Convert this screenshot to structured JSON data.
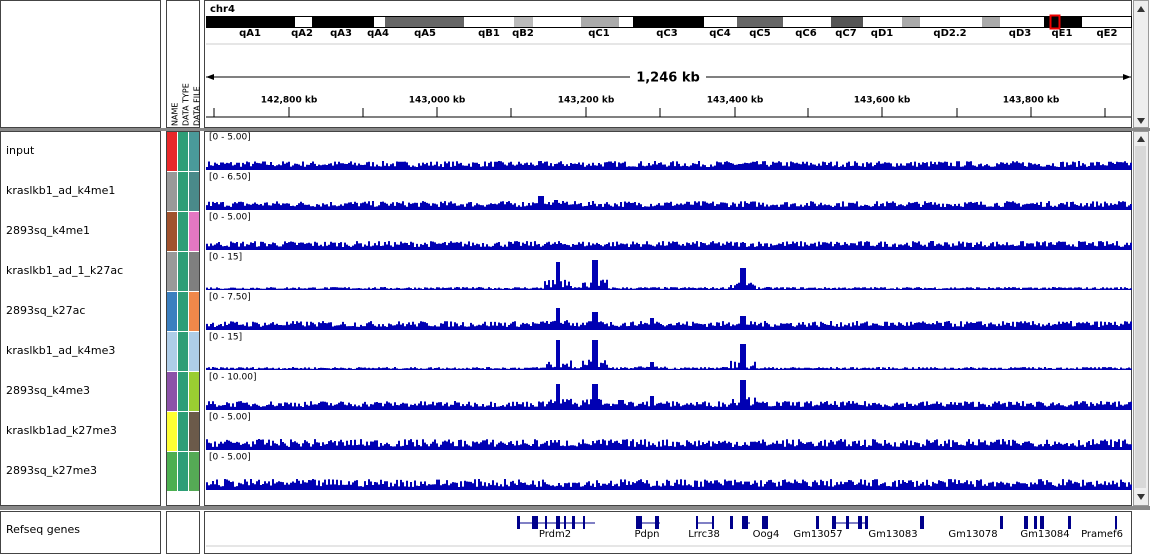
{
  "header": {
    "chromosome": "chr4",
    "bands": [
      "qA1",
      "qA2",
      "qA3",
      "qA4",
      "qA5",
      "qB1",
      "qB2",
      "qC1",
      "qC3",
      "qC4",
      "qC5",
      "qC6",
      "qC7",
      "qD1",
      "qD2.2",
      "qD3",
      "qE1",
      "qE2"
    ],
    "span": "1,246 kb",
    "ruler_ticks": [
      "142,800 kb",
      "143,000 kb",
      "143,200 kb",
      "143,400 kb",
      "143,600 kb",
      "143,800 kb"
    ],
    "attribute_columns": [
      "NAME",
      "DATA TYPE",
      "DATA FILE"
    ]
  },
  "tracks": [
    {
      "name": "input",
      "range": "[0 - 5.00]"
    },
    {
      "name": "kraslkb1_ad_k4me1",
      "range": "[0 - 6.50]"
    },
    {
      "name": "2893sq_k4me1",
      "range": "[0 - 5.00]"
    },
    {
      "name": "kraslkb1_ad_1_k27ac",
      "range": "[0 - 15]"
    },
    {
      "name": "2893sq_k27ac",
      "range": "[0 - 7.50]"
    },
    {
      "name": "kraslkb1_ad_k4me3",
      "range": "[0 - 15]"
    },
    {
      "name": "2893sq_k4me3",
      "range": "[0 - 10.00]"
    },
    {
      "name": "kraslkb1ad_k27me3",
      "range": "[0 - 5.00]"
    },
    {
      "name": "2893sq_k27me3",
      "range": "[0 - 5.00]"
    }
  ],
  "genes_track": {
    "name": "Refseq genes",
    "genes": [
      "Prdm2",
      "Pdpn",
      "Lrrc38",
      "Oog4",
      "Gm13057",
      "Gm13083",
      "Gm13078",
      "Gm13084",
      "Pramef6"
    ]
  }
}
